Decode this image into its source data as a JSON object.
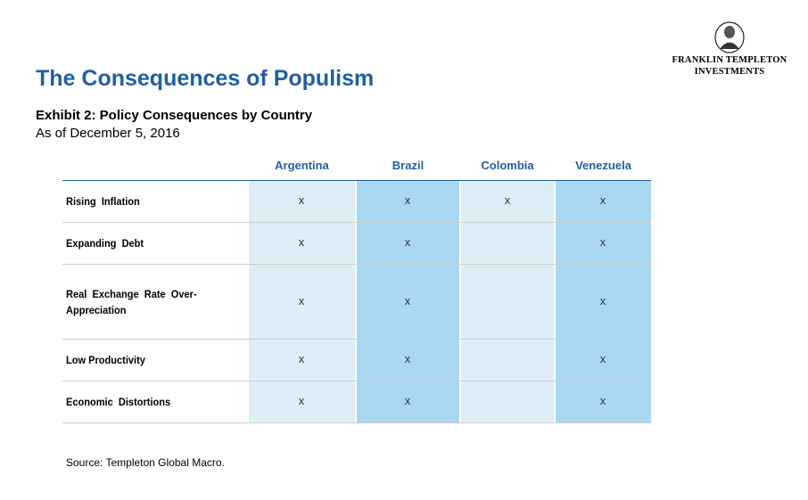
{
  "logo": {
    "line1": "FRANKLIN TEMPLETON",
    "line2": "INVESTMENTS"
  },
  "title": "The Consequences of Populism",
  "exhibit_title": "Exhibit 2: Policy Consequences by Country",
  "as_of": "As of December 5, 2016",
  "table": {
    "columns": [
      "Argentina",
      "Brazil",
      "Colombia",
      "Venezuela"
    ],
    "rows": [
      {
        "label": "Rising  Inflation",
        "marks": [
          "x",
          "x",
          "x",
          "x"
        ]
      },
      {
        "label": "Expanding  Debt",
        "marks": [
          "x",
          "x",
          "",
          "x"
        ]
      },
      {
        "label": "Real  Exchange  Rate  Over-\nAppreciation",
        "marks": [
          "x",
          "x",
          "",
          "x"
        ]
      },
      {
        "label": "Low Productivity",
        "marks": [
          "x",
          "x",
          "",
          "x"
        ]
      },
      {
        "label": "Economic  Distortions",
        "marks": [
          "x",
          "x",
          "",
          "x"
        ]
      }
    ]
  },
  "source": "Source: Templeton Global Macro.",
  "colors": {
    "title": "#1f5fa4",
    "column_light": "#ddeef7",
    "column_dark": "#a9d8f2",
    "rule": "#1f5fa4"
  }
}
